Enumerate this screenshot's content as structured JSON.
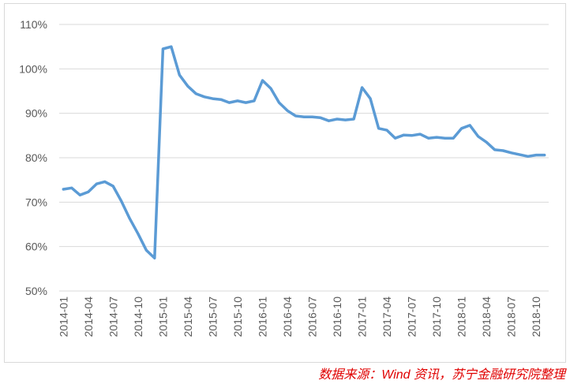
{
  "chart_data": {
    "type": "line",
    "categories": [
      "2014-01",
      null,
      null,
      "2014-04",
      null,
      null,
      "2014-07",
      null,
      null,
      "2014-10",
      null,
      null,
      "2015-01",
      null,
      null,
      "2015-04",
      null,
      null,
      "2015-07",
      null,
      null,
      "2015-10",
      null,
      null,
      "2016-01",
      null,
      null,
      "2016-04",
      null,
      null,
      "2016-07",
      null,
      null,
      "2016-10",
      null,
      null,
      "2017-01",
      null,
      null,
      "2017-04",
      null,
      null,
      "2017-07",
      null,
      null,
      "2017-10",
      null,
      null,
      "2018-01",
      null,
      null,
      "2018-04",
      null,
      null,
      "2018-07",
      null,
      null,
      "2018-10",
      null
    ],
    "values": [
      72.9,
      73.2,
      71.6,
      72.3,
      74.1,
      74.6,
      73.6,
      70.2,
      66.3,
      62.9,
      59.2,
      57.4,
      104.5,
      105.0,
      98.6,
      96.1,
      94.4,
      93.7,
      93.3,
      93.1,
      92.4,
      92.8,
      92.4,
      92.8,
      97.4,
      95.6,
      92.4,
      90.6,
      89.4,
      89.2,
      89.2,
      89.0,
      88.3,
      88.7,
      88.5,
      88.7,
      95.8,
      93.3,
      86.6,
      86.2,
      84.4,
      85.1,
      85.0,
      85.3,
      84.4,
      84.6,
      84.4,
      84.4,
      86.6,
      87.3,
      84.8,
      83.5,
      81.8,
      81.6,
      81.1,
      80.7,
      80.3,
      80.6,
      80.6
    ],
    "color": "#5b9bd5",
    "ylim": [
      50,
      110
    ],
    "yticks": [
      {
        "value": 50,
        "label": "50%"
      },
      {
        "value": 60,
        "label": "60%"
      },
      {
        "value": 70,
        "label": "70%"
      },
      {
        "value": 80,
        "label": "80%"
      },
      {
        "value": 90,
        "label": "90%"
      },
      {
        "value": 100,
        "label": "100%"
      },
      {
        "value": 110,
        "label": "110%"
      }
    ],
    "grid": true,
    "source": "数据来源：Wind 资讯，苏宁金融研究院整理"
  }
}
